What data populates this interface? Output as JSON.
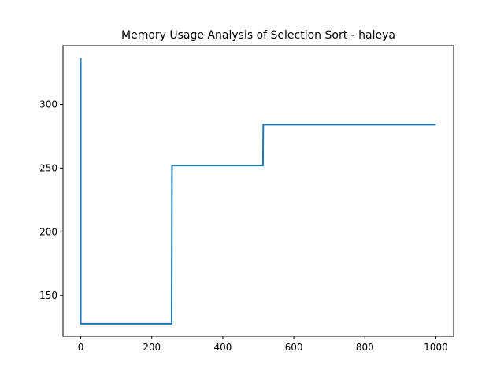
{
  "chart_data": {
    "type": "line",
    "title": "Memory Usage Analysis of Selection Sort - haleya",
    "xlabel": "",
    "ylabel": "",
    "xlim": [
      -50,
      1050
    ],
    "ylim": [
      118,
      346
    ],
    "xticks": [
      0,
      200,
      400,
      600,
      800,
      1000
    ],
    "yticks": [
      150,
      200,
      250,
      300
    ],
    "grid": false,
    "series": [
      {
        "color": "#1f77b4",
        "x": [
          0,
          0,
          1,
          256,
          257,
          513,
          514,
          1000
        ],
        "y": [
          336,
          128,
          128,
          128,
          252,
          252,
          284,
          284
        ]
      }
    ]
  }
}
